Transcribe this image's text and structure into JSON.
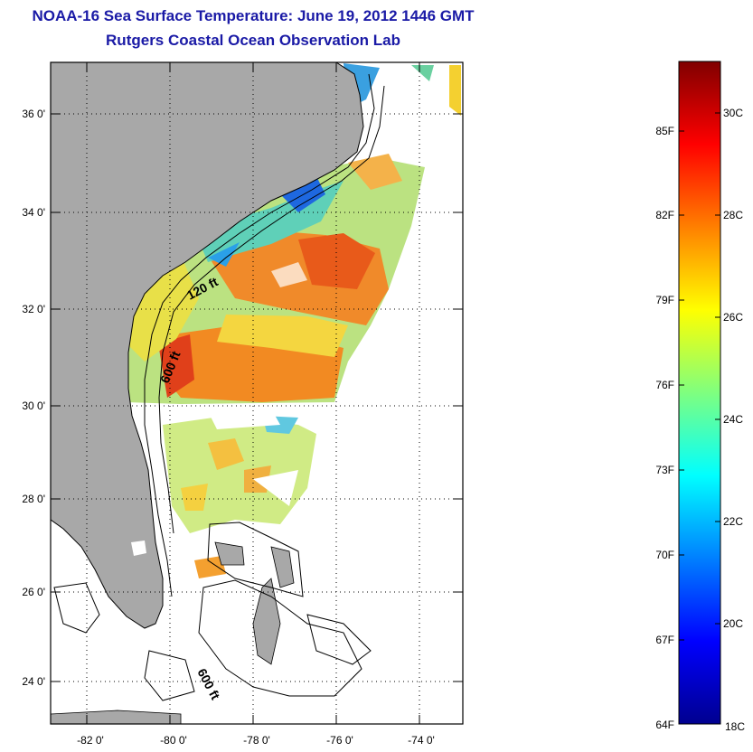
{
  "title": "NOAA-16 Sea Surface Temperature:  June 19, 2012 1446 GMT",
  "subtitle": "Rutgers Coastal Ocean Observation Lab",
  "map": {
    "lat_ticks": [
      "36 0'",
      "34 0'",
      "32 0'",
      "30 0'",
      "28 0'",
      "26 0'",
      "24 0'"
    ],
    "lon_ticks": [
      "-82 0'",
      "-80 0'",
      "-78 0'",
      "-76 0'",
      "-74 0'"
    ],
    "lat_range": [
      23.0,
      37.1
    ],
    "lon_range": [
      -83.0,
      -73.1
    ],
    "contour_labels": [
      "120 ft",
      "600 ft",
      "600 ft"
    ],
    "land_color": "#a8a8a8"
  },
  "colorbar": {
    "fahrenheit_labels": [
      "85F",
      "82F",
      "79F",
      "76F",
      "73F",
      "70F",
      "67F",
      "64F"
    ],
    "celsius_labels": [
      "30C",
      "28C",
      "26C",
      "24C",
      "22C",
      "20C",
      "18C"
    ],
    "range_c": [
      17.8,
      31.0
    ]
  }
}
